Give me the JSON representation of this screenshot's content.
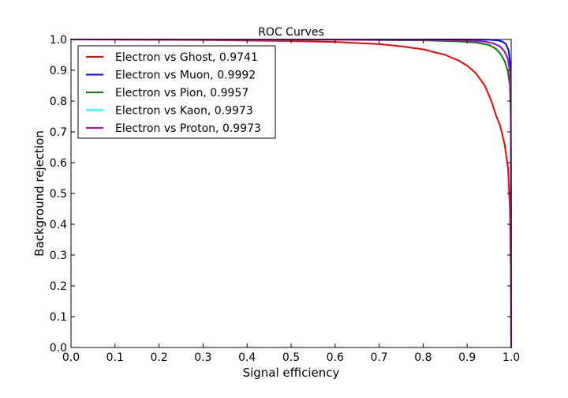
{
  "chart_data": {
    "type": "line",
    "title": "ROC Curves",
    "xlabel": "Signal efficiency",
    "ylabel": "Background rejection",
    "xlim": [
      0.0,
      1.0
    ],
    "ylim": [
      0.0,
      1.0
    ],
    "x_ticks": [
      0.0,
      0.1,
      0.2,
      0.3,
      0.4,
      0.5,
      0.6,
      0.7,
      0.8,
      0.9,
      1.0
    ],
    "y_ticks": [
      0.0,
      0.1,
      0.2,
      0.3,
      0.4,
      0.5,
      0.6,
      0.7,
      0.8,
      0.9,
      1.0
    ],
    "x_tick_labels": [
      "0.0",
      "0.1",
      "0.2",
      "0.3",
      "0.4",
      "0.5",
      "0.6",
      "0.7",
      "0.8",
      "0.9",
      "1.0"
    ],
    "y_tick_labels": [
      "0.0",
      "0.1",
      "0.2",
      "0.3",
      "0.4",
      "0.5",
      "0.6",
      "0.7",
      "0.8",
      "0.9",
      "1.0"
    ],
    "grid": false,
    "legend_position": "top-left",
    "series": [
      {
        "name": "Electron vs Ghost, 0.9741",
        "color": "#ff0000",
        "points": [
          [
            0.0,
            1.0
          ],
          [
            0.3,
            0.998
          ],
          [
            0.5,
            0.995
          ],
          [
            0.6,
            0.992
          ],
          [
            0.7,
            0.985
          ],
          [
            0.75,
            0.978
          ],
          [
            0.8,
            0.968
          ],
          [
            0.85,
            0.95
          ],
          [
            0.88,
            0.932
          ],
          [
            0.9,
            0.915
          ],
          [
            0.92,
            0.89
          ],
          [
            0.94,
            0.85
          ],
          [
            0.955,
            0.8
          ],
          [
            0.965,
            0.755
          ],
          [
            0.975,
            0.72
          ],
          [
            0.985,
            0.66
          ],
          [
            0.993,
            0.58
          ],
          [
            0.997,
            0.45
          ],
          [
            0.999,
            0.25
          ],
          [
            1.0,
            0.0
          ]
        ]
      },
      {
        "name": "Electron vs Muon, 0.9992",
        "color": "#0000ff",
        "points": [
          [
            0.0,
            1.0
          ],
          [
            0.9,
            1.0
          ],
          [
            0.95,
            0.999
          ],
          [
            0.97,
            0.997
          ],
          [
            0.98,
            0.993
          ],
          [
            0.988,
            0.985
          ],
          [
            0.994,
            0.965
          ],
          [
            0.997,
            0.93
          ],
          [
            0.999,
            0.86
          ],
          [
            1.0,
            0.0
          ]
        ]
      },
      {
        "name": "Electron vs Pion, 0.9957",
        "color": "#008000",
        "points": [
          [
            0.0,
            1.0
          ],
          [
            0.6,
            0.999
          ],
          [
            0.8,
            0.997
          ],
          [
            0.88,
            0.994
          ],
          [
            0.92,
            0.99
          ],
          [
            0.95,
            0.982
          ],
          [
            0.965,
            0.97
          ],
          [
            0.975,
            0.955
          ],
          [
            0.985,
            0.93
          ],
          [
            0.992,
            0.9
          ],
          [
            0.997,
            0.85
          ],
          [
            0.999,
            0.75
          ],
          [
            1.0,
            0.0
          ]
        ]
      },
      {
        "name": "Electron vs Kaon, 0.9973",
        "color": "#00ffff",
        "points": [
          [
            0.0,
            1.0
          ],
          [
            0.8,
            0.999
          ],
          [
            0.9,
            0.997
          ],
          [
            0.94,
            0.993
          ],
          [
            0.96,
            0.988
          ],
          [
            0.975,
            0.978
          ],
          [
            0.985,
            0.962
          ],
          [
            0.992,
            0.94
          ],
          [
            0.997,
            0.9
          ],
          [
            0.999,
            0.84
          ],
          [
            1.0,
            0.0
          ]
        ]
      },
      {
        "name": "Electron vs Proton, 0.9973",
        "color": "#bf00bf",
        "points": [
          [
            0.0,
            1.0
          ],
          [
            0.8,
            0.999
          ],
          [
            0.9,
            0.997
          ],
          [
            0.94,
            0.993
          ],
          [
            0.96,
            0.987
          ],
          [
            0.975,
            0.977
          ],
          [
            0.985,
            0.96
          ],
          [
            0.992,
            0.938
          ],
          [
            0.997,
            0.898
          ],
          [
            0.999,
            0.835
          ],
          [
            1.0,
            0.0
          ]
        ]
      }
    ]
  }
}
